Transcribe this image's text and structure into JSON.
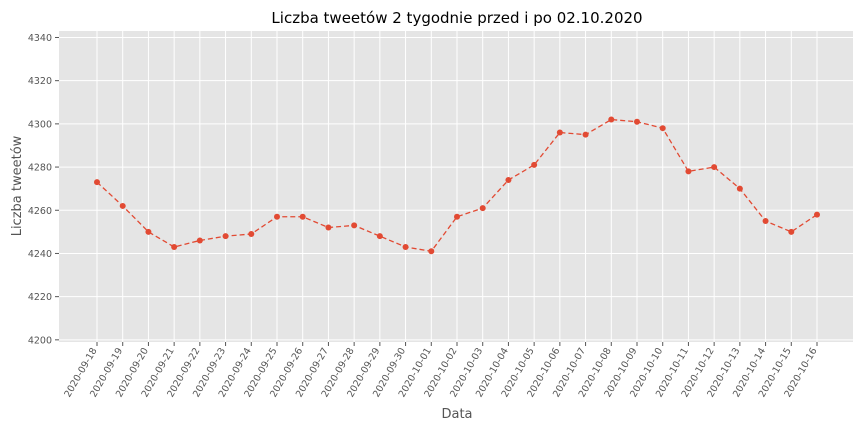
{
  "chart_data": {
    "type": "line",
    "title": "Liczba tweetów 2 tygodnie przed i po 02.10.2020",
    "xlabel": "Data",
    "ylabel": "Liczba tweetów",
    "ylim": [
      4199,
      4343
    ],
    "yticks": [
      4200,
      4220,
      4240,
      4260,
      4280,
      4300,
      4320,
      4340
    ],
    "grid": true,
    "line_style": "dashed",
    "marker": "circle",
    "series_color": "#E24A33",
    "background_color": "#E5E5E5",
    "categories": [
      "2020-09-18",
      "2020-09-19",
      "2020-09-20",
      "2020-09-21",
      "2020-09-22",
      "2020-09-23",
      "2020-09-24",
      "2020-09-25",
      "2020-09-26",
      "2020-09-27",
      "2020-09-28",
      "2020-09-29",
      "2020-09-30",
      "2020-10-01",
      "2020-10-02",
      "2020-10-03",
      "2020-10-04",
      "2020-10-05",
      "2020-10-06",
      "2020-10-07",
      "2020-10-08",
      "2020-10-09",
      "2020-10-10",
      "2020-10-11",
      "2020-10-12",
      "2020-10-13",
      "2020-10-14",
      "2020-10-15",
      "2020-10-16"
    ],
    "values": [
      4273,
      4262,
      4250,
      4243,
      4246,
      4248,
      4249,
      4257,
      4257,
      4252,
      4253,
      4248,
      4243,
      4241,
      4257,
      4261,
      4274,
      4281,
      4296,
      4295,
      4302,
      4301,
      4298,
      4278,
      4280,
      4270,
      4255,
      4250,
      4258
    ]
  }
}
